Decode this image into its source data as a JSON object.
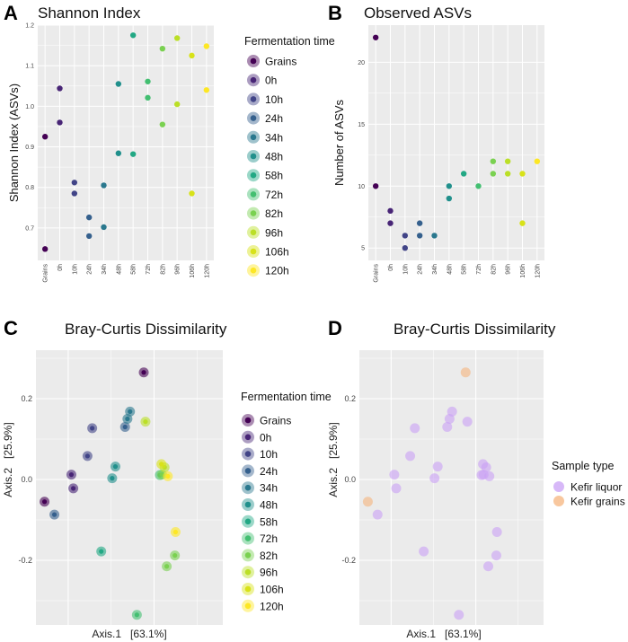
{
  "colors": {
    "Grains": "#440154",
    "0h": "#482576",
    "10h": "#414487",
    "24h": "#35608d",
    "34h": "#2a788e",
    "48h": "#21908c",
    "58h": "#22a884",
    "72h": "#43bf71",
    "82h": "#7ad151",
    "96h": "#bbdf27",
    "106h": "#d8e219",
    "120h": "#fde725",
    "Kefir liquor": "#c9a0f5",
    "Kefir grains": "#f5b47d",
    "panel_bg": "#ebebeb",
    "grid": "#ffffff"
  },
  "chart_data": [
    {
      "panel": "A",
      "type": "scatter",
      "title": "Shannon Index",
      "xlabel": "",
      "ylabel": "Shannon Index (ASVs)",
      "categories": [
        "Grains",
        "0h",
        "10h",
        "24h",
        "34h",
        "48h",
        "58h",
        "72h",
        "82h",
        "96h",
        "106h",
        "120h"
      ],
      "ylim": [
        0.62,
        1.2
      ],
      "yticks": [
        "0.7",
        "0.8",
        "0.9",
        "1.0",
        "1.1",
        "1.2"
      ],
      "ytick_values": [
        0.7,
        0.8,
        0.9,
        1.0,
        1.1,
        1.2
      ],
      "points": [
        {
          "x": "Grains",
          "y": 0.925
        },
        {
          "x": "Grains",
          "y": 0.648
        },
        {
          "x": "0h",
          "y": 1.044
        },
        {
          "x": "0h",
          "y": 0.96
        },
        {
          "x": "10h",
          "y": 0.812
        },
        {
          "x": "10h",
          "y": 0.785
        },
        {
          "x": "24h",
          "y": 0.726
        },
        {
          "x": "24h",
          "y": 0.68
        },
        {
          "x": "34h",
          "y": 0.805
        },
        {
          "x": "34h",
          "y": 0.702
        },
        {
          "x": "48h",
          "y": 1.055
        },
        {
          "x": "48h",
          "y": 0.884
        },
        {
          "x": "58h",
          "y": 1.175
        },
        {
          "x": "58h",
          "y": 0.882
        },
        {
          "x": "72h",
          "y": 1.061
        },
        {
          "x": "72h",
          "y": 1.021
        },
        {
          "x": "82h",
          "y": 1.142
        },
        {
          "x": "82h",
          "y": 0.955
        },
        {
          "x": "96h",
          "y": 1.168
        },
        {
          "x": "96h",
          "y": 1.005
        },
        {
          "x": "106h",
          "y": 1.125
        },
        {
          "x": "106h",
          "y": 0.785
        },
        {
          "x": "120h",
          "y": 1.148
        },
        {
          "x": "120h",
          "y": 1.04
        }
      ],
      "legend": {
        "title": "Fermentation time",
        "entries": [
          "Grains",
          "0h",
          "10h",
          "24h",
          "34h",
          "48h",
          "58h",
          "72h",
          "82h",
          "96h",
          "106h",
          "120h"
        ]
      }
    },
    {
      "panel": "B",
      "type": "scatter",
      "title": "Observed ASVs",
      "xlabel": "",
      "ylabel": "Number of ASVs",
      "categories": [
        "Grains",
        "0h",
        "10h",
        "24h",
        "34h",
        "48h",
        "58h",
        "72h",
        "82h",
        "96h",
        "106h",
        "120h"
      ],
      "ylim": [
        4,
        23
      ],
      "yticks": [
        "5",
        "10",
        "15",
        "20"
      ],
      "ytick_values": [
        5,
        10,
        15,
        20
      ],
      "points": [
        {
          "x": "Grains",
          "y": 22
        },
        {
          "x": "Grains",
          "y": 10
        },
        {
          "x": "0h",
          "y": 8
        },
        {
          "x": "0h",
          "y": 7
        },
        {
          "x": "10h",
          "y": 6
        },
        {
          "x": "10h",
          "y": 5
        },
        {
          "x": "24h",
          "y": 7
        },
        {
          "x": "24h",
          "y": 6
        },
        {
          "x": "34h",
          "y": 6
        },
        {
          "x": "48h",
          "y": 10
        },
        {
          "x": "48h",
          "y": 9
        },
        {
          "x": "58h",
          "y": 11
        },
        {
          "x": "72h",
          "y": 10
        },
        {
          "x": "82h",
          "y": 12
        },
        {
          "x": "82h",
          "y": 11
        },
        {
          "x": "96h",
          "y": 12
        },
        {
          "x": "96h",
          "y": 11
        },
        {
          "x": "106h",
          "y": 11
        },
        {
          "x": "106h",
          "y": 7
        },
        {
          "x": "120h",
          "y": 12
        }
      ]
    },
    {
      "panel": "C",
      "type": "scatter",
      "title": "Bray-Curtis Dissimilarity",
      "xlabel": "Axis.1   [63.1%]",
      "ylabel": "Axis.2   [25.9%]",
      "xlim": [
        -0.35,
        0.52
      ],
      "ylim": [
        -0.36,
        0.32
      ],
      "yticks": [
        "-0.2",
        "0.0",
        "0.2"
      ],
      "ytick_values": [
        -0.2,
        0.0,
        0.2
      ],
      "xgrid_values": [
        -0.2,
        0.2
      ],
      "points": [
        {
          "group": "Grains",
          "x": -0.31,
          "y": -0.055
        },
        {
          "group": "Grains",
          "x": 0.152,
          "y": 0.265
        },
        {
          "group": "0h",
          "x": -0.185,
          "y": 0.012
        },
        {
          "group": "0h",
          "x": -0.176,
          "y": -0.022
        },
        {
          "group": "10h",
          "x": -0.088,
          "y": 0.127
        },
        {
          "group": "10h",
          "x": -0.11,
          "y": 0.058
        },
        {
          "group": "24h",
          "x": -0.264,
          "y": -0.087
        },
        {
          "group": "24h",
          "x": 0.065,
          "y": 0.13
        },
        {
          "group": "34h",
          "x": 0.088,
          "y": 0.168
        },
        {
          "group": "34h",
          "x": 0.076,
          "y": 0.15
        },
        {
          "group": "48h",
          "x": 0.02,
          "y": 0.032
        },
        {
          "group": "48h",
          "x": 0.005,
          "y": 0.003
        },
        {
          "group": "58h",
          "x": -0.046,
          "y": -0.178
        },
        {
          "group": "72h",
          "x": 0.227,
          "y": 0.011
        },
        {
          "group": "72h",
          "x": 0.12,
          "y": -0.335
        },
        {
          "group": "82h",
          "x": 0.259,
          "y": -0.215
        },
        {
          "group": "82h",
          "x": 0.297,
          "y": -0.188
        },
        {
          "group": "82h",
          "x": 0.237,
          "y": 0.012
        },
        {
          "group": "96h",
          "x": 0.249,
          "y": 0.03
        },
        {
          "group": "96h",
          "x": 0.16,
          "y": 0.143
        },
        {
          "group": "106h",
          "x": 0.234,
          "y": 0.038
        },
        {
          "group": "120h",
          "x": 0.264,
          "y": 0.008
        },
        {
          "group": "120h",
          "x": 0.3,
          "y": -0.13
        }
      ],
      "legend": {
        "title": "Fermentation time",
        "entries": [
          "Grains",
          "0h",
          "10h",
          "24h",
          "34h",
          "48h",
          "58h",
          "72h",
          "82h",
          "96h",
          "106h",
          "120h"
        ]
      }
    },
    {
      "panel": "D",
      "type": "scatter",
      "title": "Bray-Curtis Dissimilarity",
      "xlabel": "Axis.1   [63.1%]",
      "ylabel": "Axis.2   [25.9%]",
      "xlim": [
        -0.35,
        0.52
      ],
      "ylim": [
        -0.36,
        0.32
      ],
      "yticks": [
        "-0.2",
        "0.0",
        "0.2"
      ],
      "ytick_values": [
        -0.2,
        0.0,
        0.2
      ],
      "xgrid_values": [
        -0.2,
        0.2
      ],
      "points": [
        {
          "group": "Kefir grains",
          "x": -0.31,
          "y": -0.055
        },
        {
          "group": "Kefir grains",
          "x": 0.152,
          "y": 0.265
        },
        {
          "group": "Kefir liquor",
          "x": -0.185,
          "y": 0.012
        },
        {
          "group": "Kefir liquor",
          "x": -0.176,
          "y": -0.022
        },
        {
          "group": "Kefir liquor",
          "x": -0.088,
          "y": 0.127
        },
        {
          "group": "Kefir liquor",
          "x": -0.11,
          "y": 0.058
        },
        {
          "group": "Kefir liquor",
          "x": -0.264,
          "y": -0.087
        },
        {
          "group": "Kefir liquor",
          "x": 0.065,
          "y": 0.13
        },
        {
          "group": "Kefir liquor",
          "x": 0.088,
          "y": 0.168
        },
        {
          "group": "Kefir liquor",
          "x": 0.076,
          "y": 0.15
        },
        {
          "group": "Kefir liquor",
          "x": 0.02,
          "y": 0.032
        },
        {
          "group": "Kefir liquor",
          "x": 0.005,
          "y": 0.003
        },
        {
          "group": "Kefir liquor",
          "x": -0.046,
          "y": -0.178
        },
        {
          "group": "Kefir liquor",
          "x": 0.227,
          "y": 0.011
        },
        {
          "group": "Kefir liquor",
          "x": 0.12,
          "y": -0.335
        },
        {
          "group": "Kefir liquor",
          "x": 0.259,
          "y": -0.215
        },
        {
          "group": "Kefir liquor",
          "x": 0.297,
          "y": -0.188
        },
        {
          "group": "Kefir liquor",
          "x": 0.237,
          "y": 0.012
        },
        {
          "group": "Kefir liquor",
          "x": 0.249,
          "y": 0.03
        },
        {
          "group": "Kefir liquor",
          "x": 0.16,
          "y": 0.143
        },
        {
          "group": "Kefir liquor",
          "x": 0.234,
          "y": 0.038
        },
        {
          "group": "Kefir liquor",
          "x": 0.264,
          "y": 0.008
        },
        {
          "group": "Kefir liquor",
          "x": 0.3,
          "y": -0.13
        }
      ],
      "legend": {
        "title": "Sample type",
        "entries": [
          "Kefir liquor",
          "Kefir grains"
        ]
      }
    }
  ]
}
